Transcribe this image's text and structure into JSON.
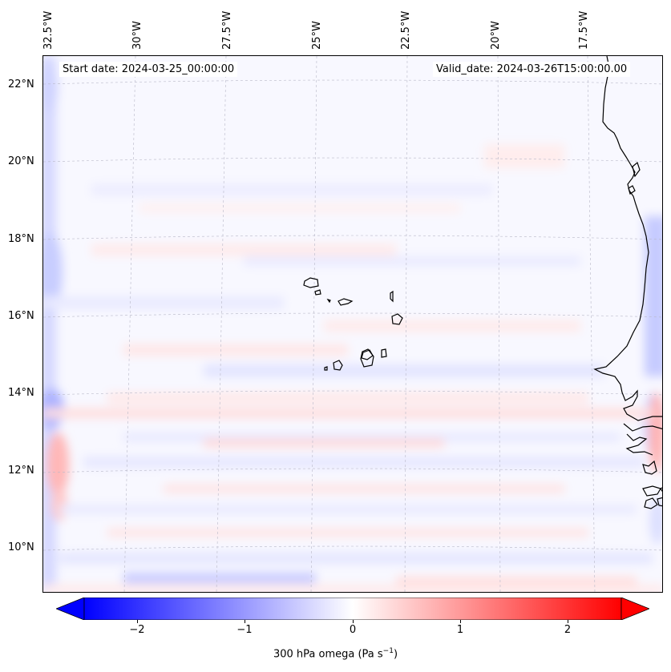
{
  "map": {
    "start_date_text": "Start date: 2024-03-25_00:00:00",
    "valid_date_text": "Valid_date: 2024-03-26T15:00:00.00",
    "lon_labels": [
      "32.5°W",
      "30°W",
      "27.5°W",
      "25°W",
      "22.5°W",
      "20°W",
      "17.5°W"
    ],
    "lat_labels": [
      "22°N",
      "20°N",
      "18°N",
      "16°N",
      "14°N",
      "12°N",
      "10°N"
    ],
    "extent": {
      "lon_min": -32.8,
      "lon_max": -15.9,
      "lat_min": 8.9,
      "lat_max": 22.7
    }
  },
  "colorbar": {
    "label_main": "300 hPa omega (Pa s",
    "label_sup": "−1",
    "label_end": ")",
    "ticks": [
      "−2",
      "−1",
      "0",
      "1",
      "2"
    ],
    "range": [
      -2.5,
      2.5
    ],
    "colormap": "bwr",
    "colors": {
      "low": "#0000ff",
      "mid": "#ffffff",
      "high": "#ff0000"
    }
  }
}
